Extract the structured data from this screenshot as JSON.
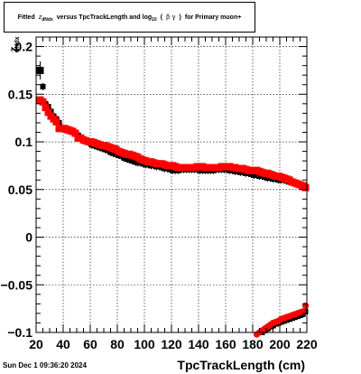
{
  "title": {
    "part1": "Fitted",
    "z": "z",
    "z_sub": "dNdx",
    "part2": "versus TpcTrackLength and log",
    "log_sub": "10",
    "paren_open": "(",
    "beta_gamma": "β γ",
    "paren_close": ")",
    "part3": "for Primary muon+"
  },
  "yaxis_label": {
    "main": "z",
    "sub": "dNdx"
  },
  "xaxis_label": "TpcTrackLength (cm)",
  "timestamp": "Sun Dec  1 09:36:20 2024",
  "colors": {
    "series_main": "#ff0000",
    "series_ref": "#000000",
    "grid": "#000000"
  },
  "chart_data": {
    "type": "scatter",
    "xlabel": "TpcTrackLength (cm)",
    "ylabel": "z dNdx",
    "xlim": [
      20,
      220
    ],
    "ylim": [
      -0.1,
      0.21
    ],
    "grid": true,
    "xticks": [
      20,
      40,
      60,
      80,
      100,
      120,
      140,
      160,
      180,
      200,
      220
    ],
    "xtick_labels": [
      "20",
      "40",
      "60",
      "80",
      "100",
      "120",
      "140",
      "160",
      "180",
      "200",
      "220"
    ],
    "yticks": [
      -0.1,
      -0.05,
      0,
      0.05,
      0.1,
      0.15,
      0.2
    ],
    "ytick_labels": [
      "−0.1",
      "−0.05",
      "0",
      "0.05",
      "0.1",
      "0.15",
      "0.2"
    ],
    "series": [
      {
        "color": "#000000",
        "x": [
          23,
          25,
          27,
          29,
          31,
          33,
          35,
          37,
          39,
          41,
          43,
          45,
          47,
          49,
          51,
          53,
          55,
          57,
          59,
          61,
          63,
          65,
          67,
          69,
          71,
          73,
          75,
          77,
          79,
          81,
          83,
          85,
          87,
          89,
          91,
          93,
          95,
          97,
          99,
          101,
          103,
          105,
          107,
          109,
          111,
          113,
          115,
          117,
          119,
          121,
          123,
          125,
          127,
          129,
          131,
          133,
          135,
          137,
          139,
          141,
          143,
          145,
          147,
          149,
          151,
          153,
          155,
          157,
          159,
          161,
          163,
          165,
          167,
          169,
          171,
          173,
          175,
          177,
          179,
          181,
          183,
          185,
          187,
          189,
          191,
          193,
          195,
          197,
          199,
          201,
          203,
          205,
          207,
          209,
          211,
          213,
          215,
          217,
          219
        ],
        "y": [
          0.175,
          0.158,
          0.14,
          0.137,
          0.132,
          0.127,
          0.124,
          0.12,
          0.115,
          0.113,
          0.112,
          0.111,
          0.11,
          0.109,
          0.107,
          0.105,
          0.103,
          0.101,
          0.099,
          0.097,
          0.096,
          0.095,
          0.094,
          0.093,
          0.092,
          0.091,
          0.089,
          0.088,
          0.087,
          0.086,
          0.085,
          0.083,
          0.082,
          0.081,
          0.08,
          0.079,
          0.078,
          0.078,
          0.077,
          0.076,
          0.076,
          0.075,
          0.075,
          0.074,
          0.074,
          0.073,
          0.072,
          0.072,
          0.071,
          0.07,
          0.07,
          0.07,
          0.071,
          0.071,
          0.071,
          0.071,
          0.071,
          0.071,
          0.071,
          0.07,
          0.07,
          0.07,
          0.07,
          0.07,
          0.07,
          0.071,
          0.071,
          0.071,
          0.071,
          0.071,
          0.07,
          0.07,
          0.069,
          0.069,
          0.068,
          0.068,
          0.067,
          0.067,
          0.066,
          0.065,
          0.065,
          0.064,
          0.064,
          0.063,
          0.062,
          0.062,
          0.061,
          0.061,
          0.06,
          0.06,
          0.06,
          0.059,
          0.058,
          0.058,
          0.057,
          0.056,
          0.055,
          0.054,
          0.053
        ]
      },
      {
        "color": "#000000",
        "x": [
          183,
          185,
          187,
          189,
          191,
          193,
          195,
          197,
          199,
          201,
          203,
          205,
          207,
          209,
          211,
          213,
          215,
          217,
          219
        ],
        "y": [
          -0.105,
          -0.103,
          -0.1,
          -0.098,
          -0.096,
          -0.094,
          -0.093,
          -0.091,
          -0.09,
          -0.089,
          -0.088,
          -0.087,
          -0.086,
          -0.085,
          -0.084,
          -0.083,
          -0.082,
          -0.081,
          -0.078
        ]
      },
      {
        "color": "#ff0000",
        "x": [
          23,
          25,
          27,
          29,
          31,
          33,
          35,
          37,
          39,
          41,
          43,
          45,
          47,
          49,
          51,
          53,
          55,
          57,
          59,
          61,
          63,
          65,
          67,
          69,
          71,
          73,
          75,
          77,
          79,
          81,
          83,
          85,
          87,
          89,
          91,
          93,
          95,
          97,
          99,
          101,
          103,
          105,
          107,
          109,
          111,
          113,
          115,
          117,
          119,
          121,
          123,
          125,
          127,
          129,
          131,
          133,
          135,
          137,
          139,
          141,
          143,
          145,
          147,
          149,
          151,
          153,
          155,
          157,
          159,
          161,
          163,
          165,
          167,
          169,
          171,
          173,
          175,
          177,
          179,
          181,
          183,
          185,
          187,
          189,
          191,
          193,
          195,
          197,
          199,
          201,
          203,
          205,
          207,
          209,
          211,
          213,
          215,
          217,
          219
        ],
        "y": [
          0.144,
          0.142,
          0.136,
          0.131,
          0.127,
          0.124,
          0.121,
          0.114,
          0.114,
          0.114,
          0.113,
          0.112,
          0.111,
          0.109,
          0.104,
          0.104,
          0.102,
          0.101,
          0.1,
          0.1,
          0.099,
          0.098,
          0.097,
          0.096,
          0.096,
          0.095,
          0.094,
          0.093,
          0.092,
          0.09,
          0.089,
          0.088,
          0.087,
          0.087,
          0.086,
          0.085,
          0.084,
          0.082,
          0.081,
          0.08,
          0.079,
          0.079,
          0.078,
          0.077,
          0.077,
          0.077,
          0.076,
          0.075,
          0.075,
          0.075,
          0.074,
          0.073,
          0.073,
          0.073,
          0.073,
          0.073,
          0.073,
          0.073,
          0.074,
          0.074,
          0.074,
          0.073,
          0.073,
          0.073,
          0.073,
          0.073,
          0.073,
          0.074,
          0.074,
          0.074,
          0.074,
          0.073,
          0.073,
          0.072,
          0.072,
          0.072,
          0.071,
          0.07,
          0.07,
          0.07,
          0.07,
          0.069,
          0.068,
          0.067,
          0.067,
          0.066,
          0.065,
          0.064,
          0.064,
          0.063,
          0.062,
          0.061,
          0.06,
          0.058,
          0.057,
          0.056,
          0.055,
          0.054,
          0.052
        ]
      },
      {
        "color": "#ff0000",
        "x": [
          183,
          185,
          187,
          189,
          191,
          193,
          195,
          197,
          199,
          201,
          203,
          205,
          207,
          209,
          211,
          213,
          215,
          217,
          219
        ],
        "y": [
          -0.102,
          -0.1,
          -0.098,
          -0.096,
          -0.094,
          -0.092,
          -0.09,
          -0.089,
          -0.088,
          -0.086,
          -0.085,
          -0.084,
          -0.083,
          -0.082,
          -0.081,
          -0.08,
          -0.079,
          -0.078,
          -0.072
        ]
      }
    ]
  }
}
